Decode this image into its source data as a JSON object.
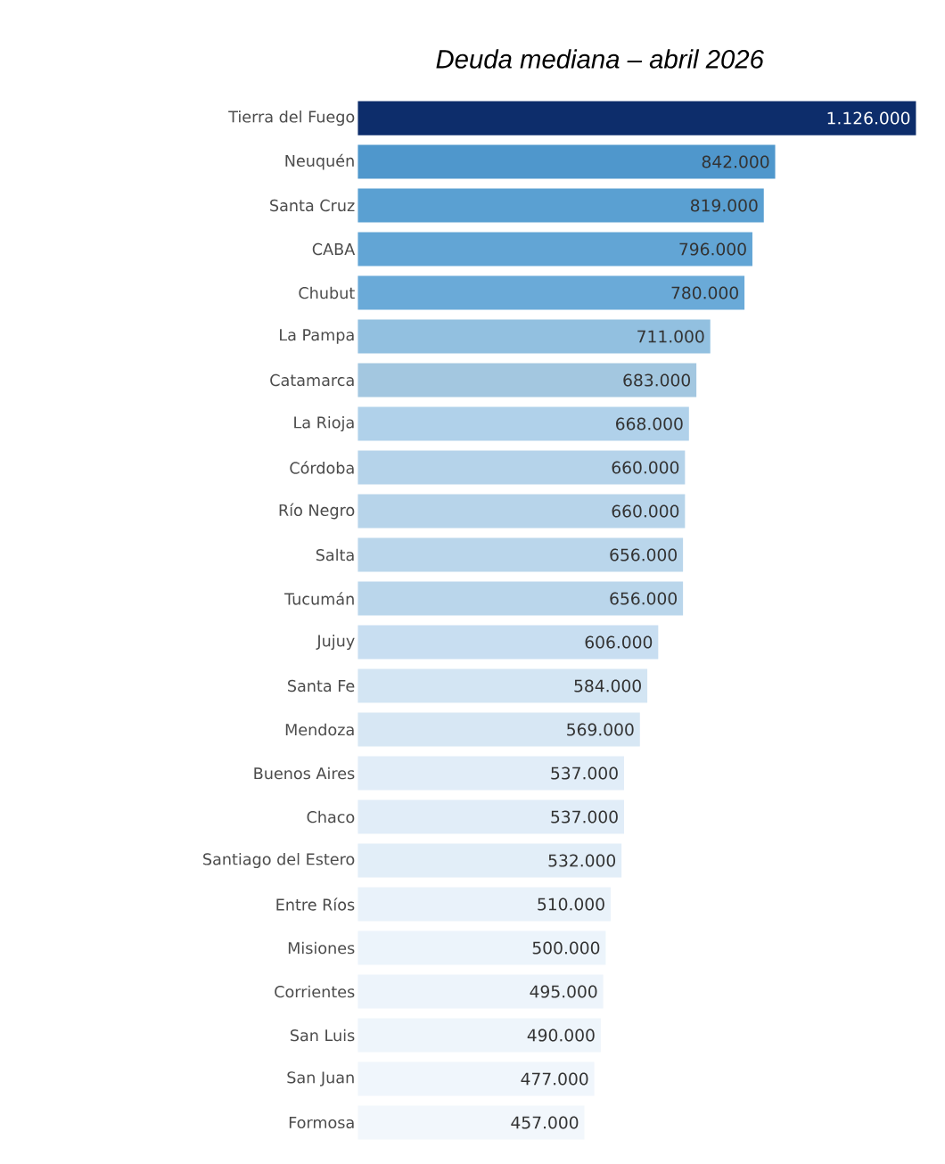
{
  "chart_data": {
    "type": "bar",
    "orientation": "horizontal",
    "title": "Deuda mediana – abril 2026",
    "categories": [
      "Tierra del Fuego",
      "Neuquén",
      "Santa Cruz",
      "CABA",
      "Chubut",
      "La Pampa",
      "Catamarca",
      "La Rioja",
      "Córdoba",
      "Río Negro",
      "Salta",
      "Tucumán",
      "Jujuy",
      "Santa Fe",
      "Mendoza",
      "Buenos Aires",
      "Chaco",
      "Santiago del Estero",
      "Entre Ríos",
      "Misiones",
      "Corrientes",
      "San Luis",
      "San Juan",
      "Formosa"
    ],
    "values": [
      1126000,
      842000,
      819000,
      796000,
      780000,
      711000,
      683000,
      668000,
      660000,
      660000,
      656000,
      656000,
      606000,
      584000,
      569000,
      537000,
      537000,
      532000,
      510000,
      500000,
      495000,
      490000,
      477000,
      457000
    ],
    "value_labels": [
      "1.126.000",
      "842.000",
      "819.000",
      "796.000",
      "780.000",
      "711.000",
      "683.000",
      "668.000",
      "660.000",
      "660.000",
      "656.000",
      "656.000",
      "606.000",
      "584.000",
      "569.000",
      "537.000",
      "537.000",
      "532.000",
      "510.000",
      "500.000",
      "495.000",
      "490.000",
      "477.000",
      "457.000"
    ],
    "colors": [
      "#0d2d6b",
      "#4f97cc",
      "#5aa0d2",
      "#62a5d5",
      "#6aaad8",
      "#92c0e0",
      "#a3c7e0",
      "#b0d1ea",
      "#b5d3ea",
      "#b7d4ea",
      "#bad6eb",
      "#bad6eb",
      "#c8def1",
      "#d3e5f3",
      "#d7e7f4",
      "#e1edf8",
      "#e1edf8",
      "#e2eef8",
      "#e9f2fa",
      "#ecf4fb",
      "#edf4fb",
      "#eef5fb",
      "#f0f6fc",
      "#f2f7fc"
    ]
  }
}
